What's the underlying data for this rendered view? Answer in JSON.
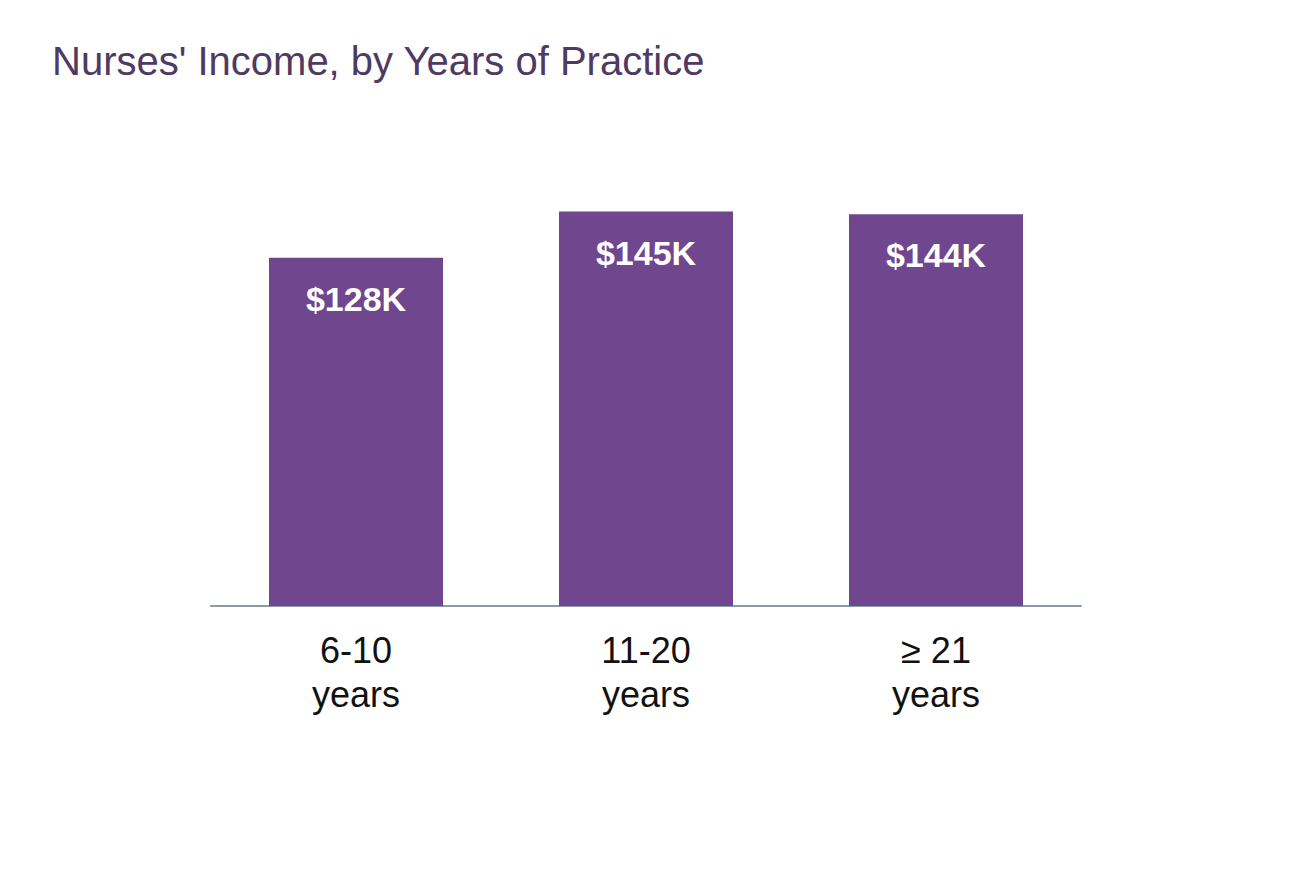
{
  "chart_data": {
    "type": "bar",
    "title": "Nurses' Income, by Years of Practice",
    "categories": [
      "6-10\nyears",
      "11-20\nyears",
      "≥ 21\nyears"
    ],
    "values": [
      128,
      145,
      144
    ],
    "value_labels": [
      "$128K",
      "$145K",
      "$144K"
    ],
    "color": "#70478f",
    "ylim": [
      0,
      150
    ],
    "grid": false,
    "data_labels": true,
    "tick_labels": "x"
  }
}
